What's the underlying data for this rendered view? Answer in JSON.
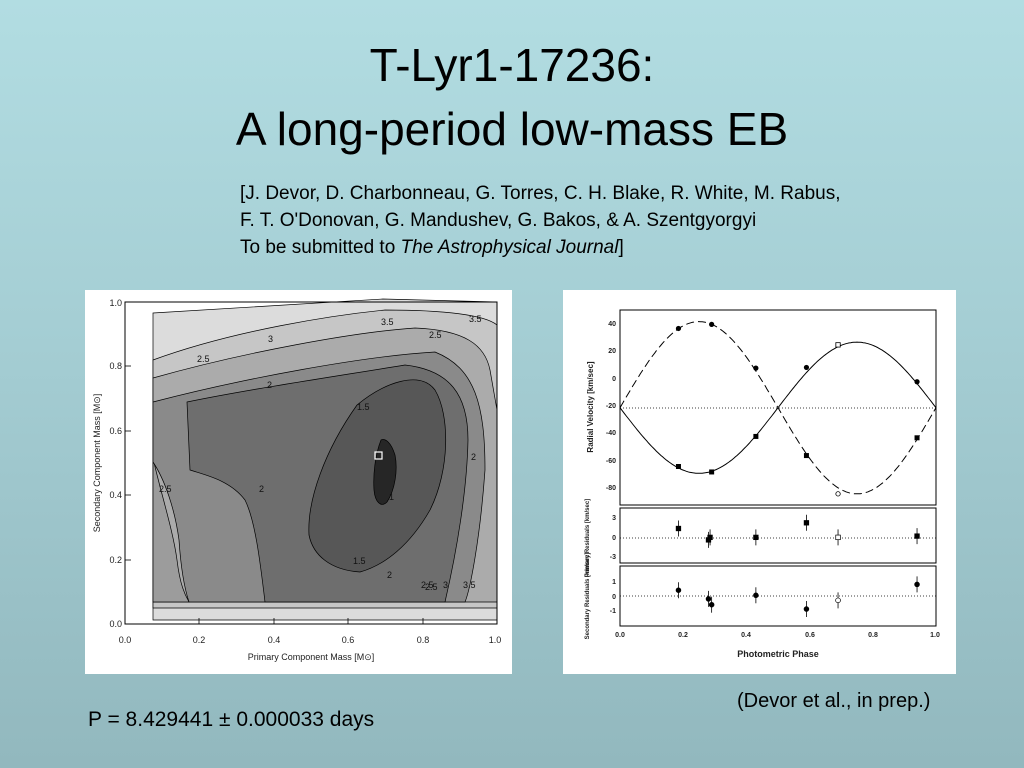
{
  "title": {
    "line1": "T-Lyr1-17236:",
    "line2": "A long-period low-mass EB"
  },
  "citation": {
    "line1": "[J. Devor, D. Charbonneau, G. Torres, C. H. Blake, R. White, M. Rabus,",
    "line2": "F. T. O'Donovan, G. Mandushev, G. Bakos, & A. Szentgyorgyi",
    "line3_prefix": "To be submitted to ",
    "line3_journal": "The Astrophysical Journal",
    "line3_suffix": "]"
  },
  "credit": "(Devor et al., in prep.)",
  "period": "P = 8.429441 ± 0.000033 days",
  "chart_data": [
    {
      "type": "contour",
      "xlabel": "Primary Component Mass  [M⊙]",
      "ylabel": "Secondary Component Mass  [M⊙]",
      "xlim": [
        0.0,
        1.0
      ],
      "ylim": [
        0.0,
        1.0
      ],
      "xticks": [
        "0.0",
        "0.2",
        "0.4",
        "0.6",
        "0.8",
        "1.0"
      ],
      "yticks": [
        "0.0",
        "0.2",
        "0.4",
        "0.6",
        "0.8",
        "1.0"
      ],
      "contour_labels": [
        "3.5",
        "3.5",
        "3",
        "2.5",
        "2.5",
        "2",
        "1.5",
        "1",
        "2",
        "2.5",
        "1.5",
        "2",
        "2.5",
        "3",
        "3.5",
        "2",
        "2.5"
      ],
      "best_fit": {
        "x": 0.69,
        "y": 0.52
      }
    },
    {
      "type": "scatter",
      "title": "",
      "ylabel": "Radial Velocity  [km/sec]",
      "ylim": [
        -95,
        45
      ],
      "yticks": [
        "40",
        "20",
        "0",
        "-20",
        "-40",
        "-60",
        "-80"
      ],
      "systemic_velocity": -22,
      "series": [
        {
          "x": [
            0.185,
            0.29,
            0.43,
            0.59,
            0.94
          ],
          "y": [
            36,
            39,
            7,
            7.5,
            -3
          ]
        },
        {
          "x": [
            0.185,
            0.29,
            0.43,
            0.59,
            0.94
          ],
          "y": [
            -65,
            -69,
            -43,
            -57,
            -44
          ]
        }
      ]
    },
    {
      "type": "scatter",
      "ylabel": "Primary Residuals [km/sec]",
      "ylim": [
        -4,
        4
      ],
      "yticks": [
        "3",
        "0",
        "-3"
      ],
      "series": [
        {
          "x": [
            0.185,
            0.28,
            0.285,
            0.43,
            0.59,
            0.69,
            0.94
          ],
          "y": [
            1.5,
            -0.3,
            0.1,
            0.1,
            2.4,
            0.1,
            0.3
          ]
        }
      ]
    },
    {
      "type": "scatter",
      "ylabel": "Secondary Residuals [km/sec]",
      "xlabel": "Photometric Phase",
      "xlim": [
        0.0,
        1.0
      ],
      "xticks": [
        "0.0",
        "0.2",
        "0.4",
        "0.6",
        "0.8",
        "1.0"
      ],
      "ylim": [
        -2,
        2
      ],
      "yticks": [
        "1",
        "0",
        "-1"
      ],
      "series": [
        {
          "x": [
            0.185,
            0.28,
            0.29,
            0.43,
            0.59,
            0.69,
            0.94
          ],
          "y": [
            0.4,
            -0.2,
            -0.6,
            0.05,
            -0.9,
            -0.3,
            0.8
          ]
        }
      ]
    }
  ]
}
